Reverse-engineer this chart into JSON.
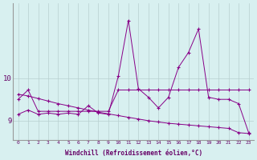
{
  "xlabel": "Windchill (Refroidissement éolien,°C)",
  "background_color": "#d8f0f0",
  "grid_color": "#b8d0d0",
  "line_color": "#880088",
  "x_hours": [
    0,
    1,
    2,
    3,
    4,
    5,
    6,
    7,
    8,
    9,
    10,
    11,
    12,
    13,
    14,
    15,
    16,
    17,
    18,
    19,
    20,
    21,
    22,
    23
  ],
  "s1": [
    9.5,
    9.72,
    9.22,
    9.22,
    9.22,
    9.22,
    9.22,
    9.22,
    9.22,
    9.22,
    9.72,
    9.72,
    9.72,
    9.72,
    9.72,
    9.72,
    9.72,
    9.72,
    9.72,
    9.72,
    9.72,
    9.72,
    9.72,
    9.72
  ],
  "s2": [
    9.15,
    9.25,
    9.15,
    9.18,
    9.15,
    9.18,
    9.15,
    9.35,
    9.18,
    9.15,
    10.05,
    11.35,
    9.75,
    9.55,
    9.3,
    9.55,
    10.25,
    10.6,
    11.15,
    9.55,
    9.5,
    9.5,
    9.4,
    8.72
  ],
  "s3": [
    9.62,
    9.58,
    9.52,
    9.46,
    9.4,
    9.35,
    9.3,
    9.25,
    9.2,
    9.16,
    9.12,
    9.08,
    9.04,
    9.0,
    8.97,
    8.94,
    8.92,
    8.9,
    8.88,
    8.86,
    8.84,
    8.82,
    8.72,
    8.7
  ],
  "ylim": [
    8.55,
    11.75
  ],
  "yticks": [
    9,
    10
  ],
  "xlim": [
    -0.5,
    23.5
  ]
}
